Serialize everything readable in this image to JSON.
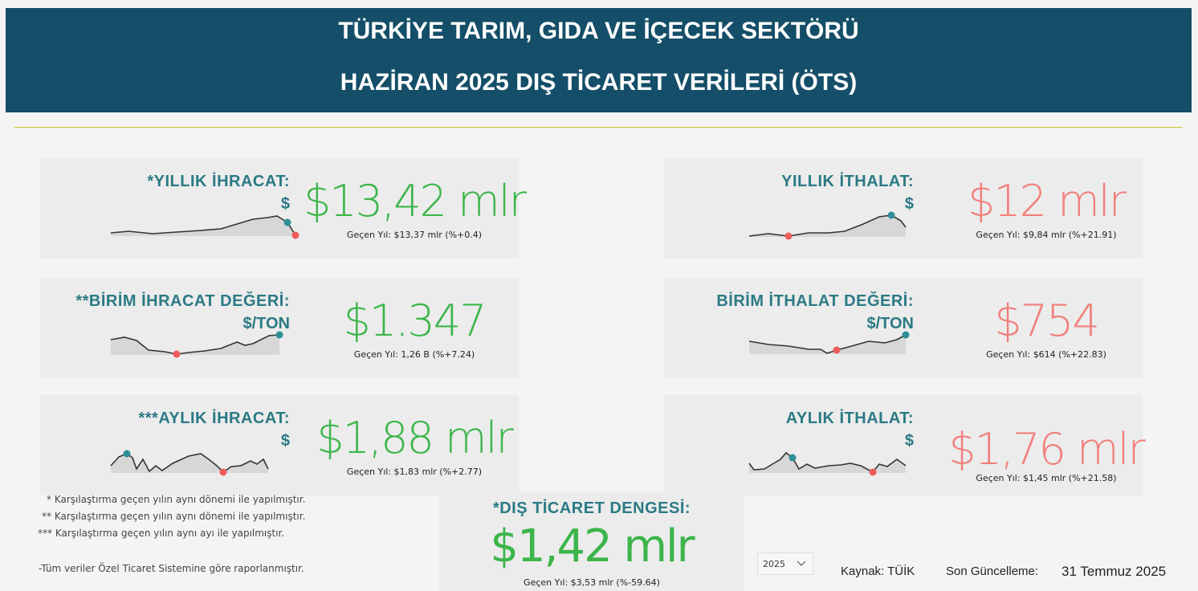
{
  "header": {
    "title_line1": "TÜRKİYE TARIM, GIDA VE İÇECEK SEKTÖRÜ",
    "title_line2": "HAZİRAN 2025 DIŞ TİCARET VERİLERİ (ÖTS)"
  },
  "cards": [
    {
      "title": "*YILLIK İHRACAT:",
      "unit": "$",
      "value": "$13,42 mlr",
      "comparison": "Geçen Yıl: $13,37 mlr (%+0.4)",
      "color": "#3cb54a"
    },
    {
      "title": "YILLIK İTHALAT:",
      "unit": "$",
      "value": "$12 mlr",
      "comparison": "Geçen Yıl: $9,84 mlr (%+21.91)",
      "color": "#f17f7b"
    },
    {
      "title": "**BİRİM İHRACAT DEĞERİ:",
      "unit": "$/TON",
      "value": "$1.347",
      "comparison": "Geçen Yıl: 1,26 B (%+7.24)",
      "color": "#3cb54a"
    },
    {
      "title": "BİRİM İTHALAT DEĞERİ:",
      "unit": "$/TON",
      "value": "$754",
      "comparison": "Geçen Yıl: $614 (%+22.83)",
      "color": "#f17f7b"
    },
    {
      "title": "***AYLIK İHRACAT:",
      "unit": "$",
      "value": "$1,88 mlr",
      "comparison": "Geçen Yıl: $1,83 mlr (%+2.77)",
      "color": "#3cb54a"
    },
    {
      "title": "AYLIK İTHALAT:",
      "unit": "$",
      "value": "$1,76 mlr",
      "comparison": "Geçen Yıl: $1,45 mlr (%+21.58)",
      "color": "#f17f7b"
    }
  ],
  "notes": [
    "* Karşılaştırma geçen yılın aynı dönemi ile yapılmıştır.",
    "** Karşılaştırma geçen yılın aynı dönemi ile yapılmıştır.",
    "*** Karşılaştırma geçen yılın aynı ayı ile yapılmıştır."
  ],
  "footnote": "-Tüm veriler Özel Ticaret Sistemine göre raporlanmıştır.",
  "balance": {
    "title": "*DIŞ TİCARET DENGESİ:",
    "value": "$1,42 mlr",
    "comparison": "Geçen Yıl: $3,53 mlr (%-59.64)",
    "color": "#3cb54a"
  },
  "filter": "2025",
  "source": "Kaynak: TÜİK",
  "update_label": "Son Güncelleme:",
  "update_date": "31 Temmuz 2025"
}
